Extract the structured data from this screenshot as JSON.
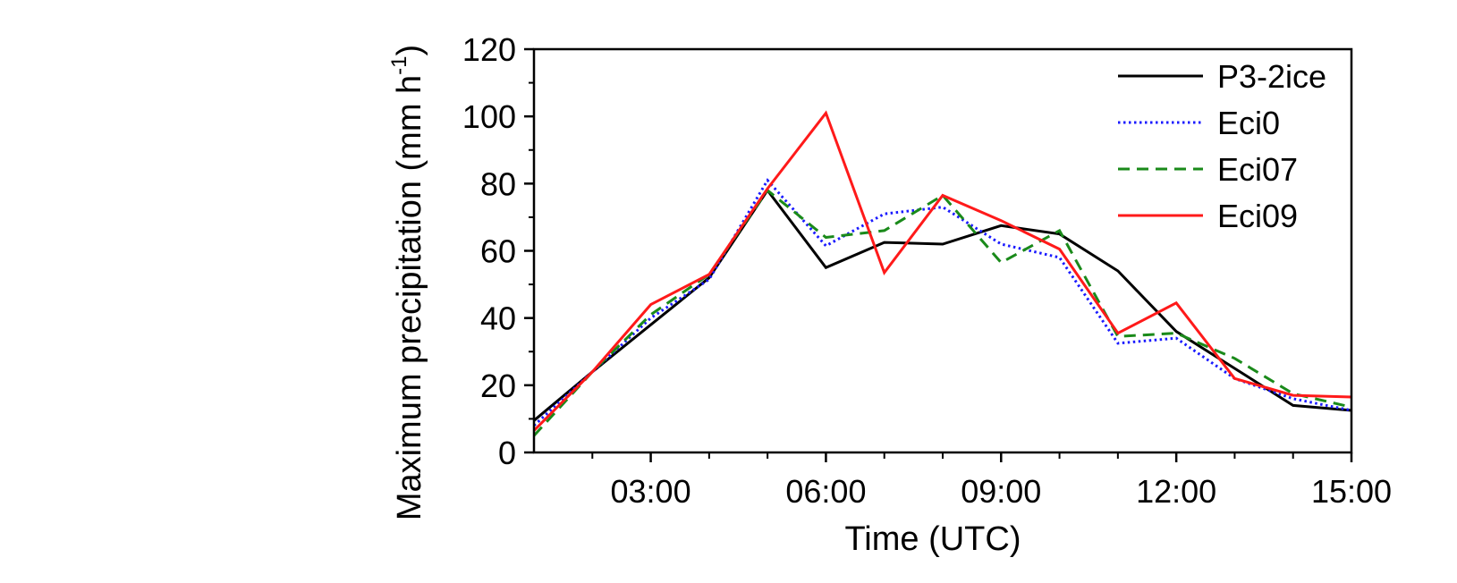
{
  "chart_data": {
    "type": "line",
    "xlabel": "Time (UTC)",
    "ylabel": "Maximum precipitation (mm h",
    "ylabel_sup": "-1",
    "ylabel_close": ")",
    "xlim": [
      1,
      15
    ],
    "ylim": [
      0,
      120
    ],
    "x_ticks": [
      3,
      6,
      9,
      12,
      15
    ],
    "x_tick_labels": [
      "03:00",
      "06:00",
      "09:00",
      "12:00",
      "15:00"
    ],
    "x_minor_ticks": [
      2,
      4,
      5,
      7,
      8,
      10,
      11,
      13,
      14
    ],
    "y_ticks": [
      0,
      20,
      40,
      60,
      80,
      100,
      120
    ],
    "y_tick_labels": [
      "0",
      "20",
      "40",
      "60",
      "80",
      "100",
      "120"
    ],
    "grid": false,
    "legend_position": "top-right",
    "series": [
      {
        "name": "P3-2ice",
        "color": "#000000",
        "dash": "solid",
        "x": [
          1,
          2,
          3,
          4,
          5,
          6,
          7,
          8,
          9,
          10,
          11,
          12,
          13,
          14,
          15
        ],
        "values": [
          9.5,
          24,
          38,
          52,
          78,
          55,
          62.5,
          62,
          67.5,
          65,
          54,
          36,
          25,
          14,
          12.5
        ]
      },
      {
        "name": "Eci0",
        "color": "#1a1aff",
        "dash": "dotted",
        "x": [
          1,
          2,
          3,
          4,
          5,
          6,
          7,
          8,
          9,
          10,
          11,
          12,
          13,
          14,
          15
        ],
        "values": [
          8,
          24,
          40,
          51.5,
          81,
          61.5,
          71,
          73,
          62,
          58,
          32.5,
          34,
          22,
          16,
          12.5
        ]
      },
      {
        "name": "Eci07",
        "color": "#1a8a1a",
        "dash": "dashed",
        "x": [
          1,
          2,
          3,
          4,
          5,
          6,
          7,
          8,
          9,
          10,
          11,
          12,
          13,
          14,
          15
        ],
        "values": [
          5,
          24,
          41,
          53,
          78,
          64,
          66,
          76.5,
          56.5,
          66,
          34.5,
          35.5,
          28,
          17.5,
          13.5
        ]
      },
      {
        "name": "Eci09",
        "color": "#ff1a1a",
        "dash": "solid",
        "x": [
          1,
          2,
          3,
          4,
          5,
          6,
          7,
          8,
          9,
          10,
          11,
          12,
          13,
          14,
          15
        ],
        "values": [
          6.5,
          24,
          44,
          53,
          78.5,
          101,
          53.5,
          76.5,
          69,
          60.5,
          35.5,
          44.5,
          22,
          17,
          16.5
        ]
      }
    ]
  }
}
